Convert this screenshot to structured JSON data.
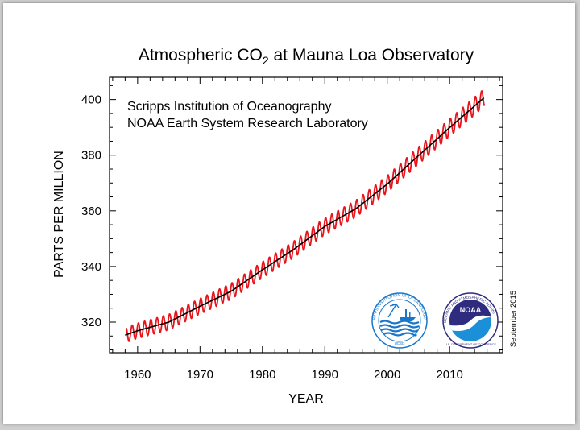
{
  "chart_data": {
    "type": "line",
    "title_main": "Atmospheric CO",
    "title_sub": "2",
    "title_rest": " at Mauna Loa Observatory",
    "xlabel": "YEAR",
    "ylabel": "PARTS PER MILLION",
    "annotation_lines": [
      "Scripps Institution of Oceanography",
      "NOAA Earth System Research Laboratory"
    ],
    "date_note": "September 2015",
    "xlim": [
      1955.5,
      2018.5
    ],
    "ylim": [
      309,
      408
    ],
    "x_ticks": [
      1960,
      1970,
      1980,
      1990,
      2000,
      2010
    ],
    "y_ticks": [
      320,
      340,
      360,
      380,
      400
    ],
    "grid": false,
    "series": [
      {
        "name": "",
        "kind": "monthly",
        "color": "#e8141b",
        "seasonal_amplitude": 3.2,
        "x": [
          1958.2,
          2015.6
        ]
      },
      {
        "name": "",
        "kind": "trend",
        "color": "#000000",
        "x": [
          1958,
          1960,
          1965,
          1970,
          1975,
          1980,
          1985,
          1990,
          1995,
          2000,
          2005,
          2010,
          2015.6
        ],
        "y": [
          315.3,
          316.9,
          320.0,
          325.7,
          331.1,
          338.8,
          346.1,
          354.4,
          360.8,
          369.6,
          379.8,
          389.9,
          400.8
        ]
      }
    ]
  },
  "logos": {
    "scripps": {
      "name": "scripps-logo",
      "text": "SCRIPPS INSTITUTION OF OCEANOGRAPHY",
      "bottom": "UCSD",
      "color": "#1a76c9"
    },
    "noaa": {
      "name": "noaa-logo",
      "text": "NATIONAL OCEANIC AND ATMOSPHERIC ADMINISTRATION",
      "bottom": "U.S. DEPARTMENT OF COMMERCE",
      "label": "NOAA",
      "color_dark": "#2f2b7e",
      "color_light": "#1c8fd9"
    }
  }
}
